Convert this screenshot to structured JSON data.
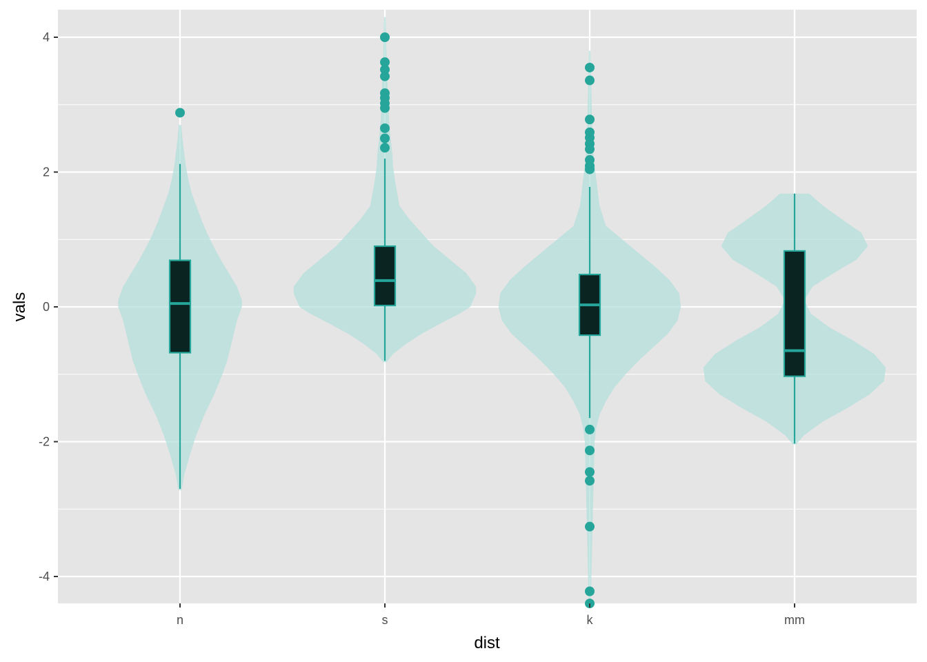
{
  "chart_data": {
    "type": "violin",
    "xlabel": "dist",
    "ylabel": "vals",
    "categories": [
      "n",
      "s",
      "k",
      "mm"
    ],
    "ylim": [
      -4.4,
      4.4
    ],
    "y_ticks": [
      -4,
      -2,
      0,
      2,
      4
    ],
    "y_tick_labels": [
      "-4",
      "-2",
      "0",
      "2",
      "4"
    ],
    "grid": true,
    "colors": {
      "panel_bg": "#e5e5e5",
      "grid": "#ffffff",
      "violin_fill": "#b2dfdb",
      "accent": "#26a69a",
      "box_fill": "#0a2421"
    },
    "series": [
      {
        "category": "n",
        "box": {
          "q1": -0.68,
          "median": 0.05,
          "q3": 0.69,
          "whisker_low": -2.7,
          "whisker_high": 2.12
        },
        "outliers": [
          2.88
        ],
        "violin": {
          "y": [
            -2.72,
            -2.5,
            -2.2,
            -1.9,
            -1.6,
            -1.3,
            -1.0,
            -0.8,
            -0.6,
            -0.4,
            -0.2,
            0.0,
            0.1,
            0.3,
            0.5,
            0.7,
            0.9,
            1.1,
            1.3,
            1.5,
            1.7,
            1.9,
            2.1,
            2.3,
            2.5,
            2.7
          ],
          "half_width": [
            0.02,
            0.05,
            0.12,
            0.2,
            0.3,
            0.42,
            0.52,
            0.58,
            0.62,
            0.66,
            0.7,
            0.76,
            0.76,
            0.7,
            0.6,
            0.5,
            0.41,
            0.33,
            0.26,
            0.2,
            0.14,
            0.1,
            0.07,
            0.05,
            0.03,
            0.015
          ]
        }
      },
      {
        "category": "s",
        "box": {
          "q1": 0.02,
          "median": 0.39,
          "q3": 0.9,
          "whisker_low": -0.8,
          "whisker_high": 2.2
        },
        "outliers": [
          4.0,
          3.63,
          3.52,
          3.42,
          3.17,
          3.1,
          3.02,
          2.95,
          2.65,
          2.5,
          2.36
        ],
        "violin": {
          "y": [
            -0.82,
            -0.7,
            -0.55,
            -0.4,
            -0.25,
            -0.1,
            0.0,
            0.2,
            0.3,
            0.5,
            0.7,
            0.9,
            1.1,
            1.3,
            1.5,
            1.7,
            1.9,
            2.1,
            2.3,
            2.5,
            2.8,
            3.1,
            3.4,
            3.7,
            4.0,
            4.3
          ],
          "half_width": [
            0.02,
            0.1,
            0.26,
            0.45,
            0.68,
            0.92,
            1.05,
            1.12,
            1.12,
            1.0,
            0.8,
            0.6,
            0.45,
            0.3,
            0.18,
            0.15,
            0.12,
            0.1,
            0.09,
            0.07,
            0.05,
            0.04,
            0.03,
            0.02,
            0.015,
            0.01
          ]
        }
      },
      {
        "category": "k",
        "box": {
          "q1": -0.42,
          "median": 0.03,
          "q3": 0.48,
          "whisker_low": -1.65,
          "whisker_high": 1.78
        },
        "outliers": [
          3.55,
          3.36,
          2.78,
          2.59,
          2.51,
          2.42,
          2.34,
          2.18,
          2.09,
          2.04,
          -1.82,
          -2.13,
          -2.45,
          -2.58,
          -3.26,
          -4.22,
          -4.4
        ],
        "violin": {
          "y": [
            -4.45,
            -4.0,
            -3.5,
            -3.0,
            -2.5,
            -2.0,
            -1.8,
            -1.6,
            -1.4,
            -1.2,
            -1.0,
            -0.8,
            -0.6,
            -0.4,
            -0.2,
            0.0,
            0.2,
            0.4,
            0.6,
            0.8,
            1.0,
            1.2,
            1.5,
            1.8,
            2.2,
            2.7,
            3.2,
            3.8
          ],
          "half_width": [
            0.01,
            0.02,
            0.03,
            0.04,
            0.05,
            0.06,
            0.08,
            0.12,
            0.2,
            0.3,
            0.44,
            0.6,
            0.78,
            0.96,
            1.08,
            1.12,
            1.1,
            0.98,
            0.8,
            0.6,
            0.4,
            0.2,
            0.12,
            0.09,
            0.05,
            0.03,
            0.02,
            0.01
          ]
        }
      },
      {
        "category": "mm",
        "box": {
          "q1": -1.03,
          "median": -0.65,
          "q3": 0.83,
          "whisker_low": -2.03,
          "whisker_high": 1.68
        },
        "outliers": [],
        "violin": {
          "y": [
            -2.04,
            -1.9,
            -1.7,
            -1.5,
            -1.3,
            -1.1,
            -0.9,
            -0.7,
            -0.5,
            -0.3,
            -0.1,
            0.1,
            0.3,
            0.5,
            0.7,
            0.9,
            1.1,
            1.3,
            1.5,
            1.68
          ],
          "half_width": [
            0.02,
            0.12,
            0.35,
            0.65,
            0.92,
            1.1,
            1.12,
            0.98,
            0.72,
            0.42,
            0.2,
            0.12,
            0.22,
            0.48,
            0.76,
            0.9,
            0.82,
            0.58,
            0.35,
            0.18
          ]
        }
      }
    ]
  }
}
